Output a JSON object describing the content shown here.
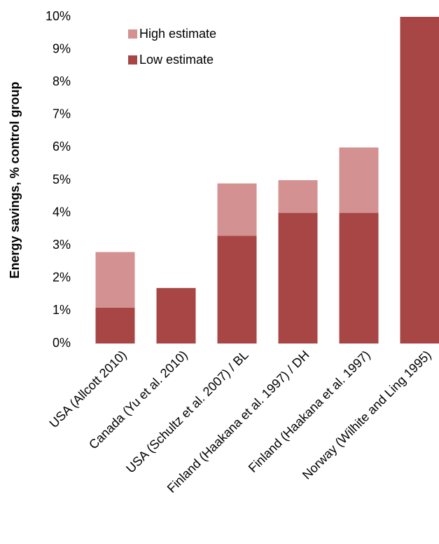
{
  "chart_data": {
    "type": "stacked-bar",
    "y_label": "Energy savings, % control group",
    "categories": [
      "USA (Allcott 2010)",
      "Canada (Yu et al. 2010)",
      "USA (Schultz et al. 2007) / BL",
      "Finland (Haakana et al. 1997) / DH",
      "Finland (Haakana et al. 1997)",
      "Norway (Wilhite and Ling 1995)"
    ],
    "series": [
      {
        "name": "Low estimate",
        "color": "#a84646",
        "values": [
          1.1,
          1.7,
          3.3,
          4.0,
          4.0,
          10.0
        ]
      },
      {
        "name": "High estimate",
        "color": "#d39191",
        "values": [
          1.7,
          0,
          1.6,
          1.0,
          2.0,
          0
        ]
      }
    ],
    "ylim": [
      0,
      10
    ],
    "yticks": [
      {
        "value": 0,
        "label": "0%"
      },
      {
        "value": 1,
        "label": "1%"
      },
      {
        "value": 2,
        "label": "2%"
      },
      {
        "value": 3,
        "label": "3%"
      },
      {
        "value": 4,
        "label": "4%"
      },
      {
        "value": 5,
        "label": "5%"
      },
      {
        "value": 6,
        "label": "6%"
      },
      {
        "value": 7,
        "label": "7%"
      },
      {
        "value": 8,
        "label": "8%"
      },
      {
        "value": 9,
        "label": "9%"
      },
      {
        "value": 10,
        "label": "10%"
      }
    ],
    "legend": "upper left"
  }
}
